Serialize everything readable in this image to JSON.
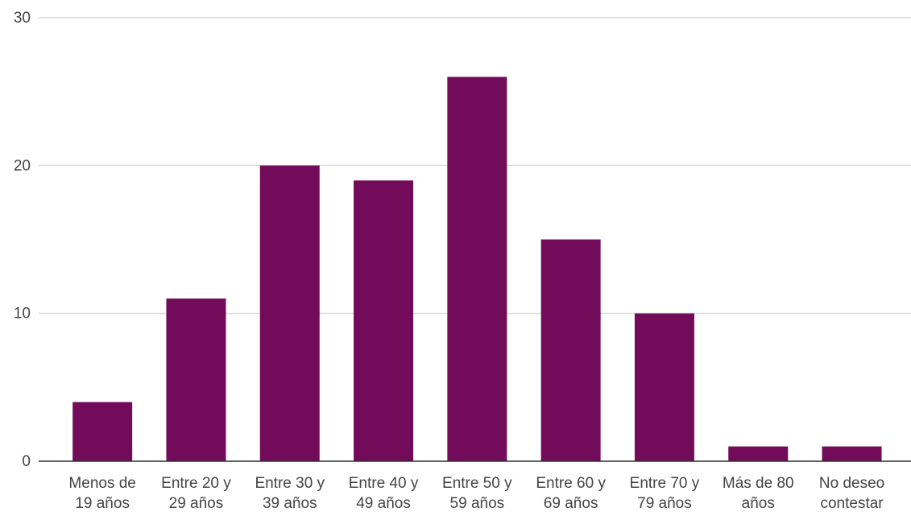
{
  "chart_data": {
    "type": "bar",
    "categories": [
      "Menos de 19 años",
      "Entre 20 y 29 años",
      "Entre 30 y 39 años",
      "Entre 40 y 49 años",
      "Entre 50 y 59 años",
      "Entre 60 y 69 años",
      "Entre 70 y 79 años",
      "Más de 80 años",
      "No deseo contestar"
    ],
    "category_lines": [
      [
        "Menos de",
        "19 años"
      ],
      [
        "Entre 20 y",
        "29 años"
      ],
      [
        "Entre 30 y",
        "39 años"
      ],
      [
        "Entre 40 y",
        "49 años"
      ],
      [
        "Entre 50 y",
        "59 años"
      ],
      [
        "Entre 60 y",
        "69 años"
      ],
      [
        "Entre 70 y",
        "79 años"
      ],
      [
        "Más de 80",
        "años"
      ],
      [
        "No deseo",
        "contestar"
      ]
    ],
    "values": [
      4,
      11,
      20,
      19,
      26,
      15,
      10,
      1,
      1
    ],
    "title": "",
    "xlabel": "",
    "ylabel": "",
    "ylim": [
      0,
      30
    ],
    "yticks": [
      "0",
      "10",
      "20",
      "30"
    ],
    "grid": true,
    "legend": "none",
    "colors": {
      "bar": "#730B5B",
      "grid": "#D9D9D9",
      "axis": "#333333",
      "text": "#444444"
    }
  }
}
